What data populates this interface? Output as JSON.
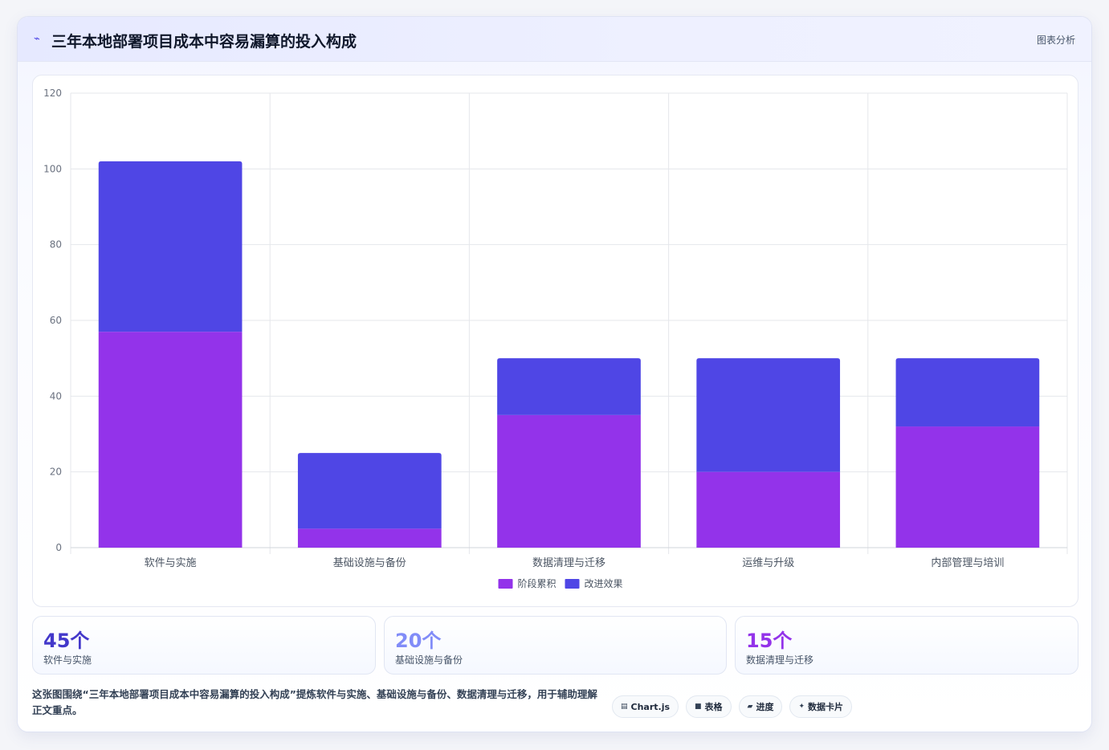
{
  "header": {
    "icon": "chart-line-icon",
    "title": "三年本地部署项目成本中容易漏算的投入构成",
    "action_label": "图表分析"
  },
  "chart_data": {
    "type": "bar",
    "stacked": true,
    "categories": [
      "软件与实施",
      "基础设施与备份",
      "数据清理与迁移",
      "运维与升级",
      "内部管理与培训"
    ],
    "series": [
      {
        "name": "阶段累积",
        "color": "#9333ea",
        "values": [
          57,
          5,
          35,
          20,
          32
        ]
      },
      {
        "name": "改进效果",
        "color": "#4f46e5",
        "values": [
          45,
          20,
          15,
          30,
          18
        ]
      }
    ],
    "ylim": [
      0,
      120
    ],
    "yticks": [
      0,
      20,
      40,
      60,
      80,
      100,
      120
    ],
    "grid": true,
    "legend_position": "bottom"
  },
  "stats": [
    {
      "value": "45个",
      "label": "软件与实施",
      "color": "#4338ca"
    },
    {
      "value": "20个",
      "label": "基础设施与备份",
      "color": "#818cf8"
    },
    {
      "value": "15个",
      "label": "数据清理与迁移",
      "color": "#9333ea"
    }
  ],
  "description": "这张图围绕“三年本地部署项目成本中容易漏算的投入构成”提炼软件与实施、基础设施与备份、数据清理与迁移，用于辅助理解正文重点。",
  "tags": [
    {
      "icon": "table-icon",
      "glyph": "▤",
      "label": "Chart.js"
    },
    {
      "icon": "grid-icon",
      "glyph": "■",
      "label": "表格"
    },
    {
      "icon": "progress-icon",
      "glyph": "▰",
      "label": "进度"
    },
    {
      "icon": "card-icon",
      "glyph": "✦",
      "label": "数据卡片"
    }
  ]
}
